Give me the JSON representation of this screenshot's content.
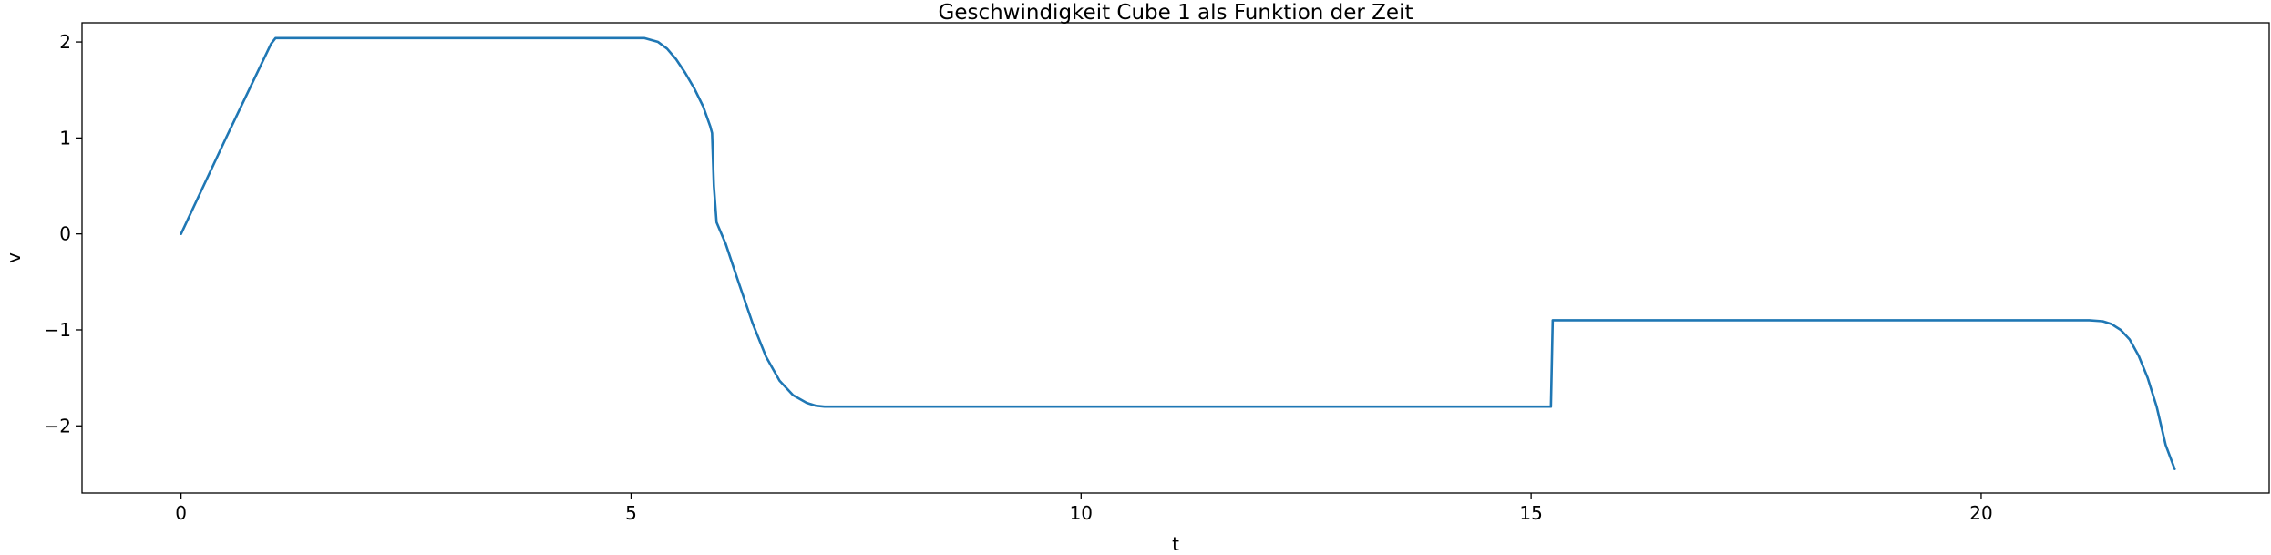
{
  "chart_data": {
    "type": "line",
    "title": "Geschwindigkeit Cube 1 als Funktion der Zeit",
    "xlabel": "t",
    "ylabel": "v",
    "xlim": [
      -1.1,
      23.2
    ],
    "ylim": [
      -2.7,
      2.2
    ],
    "xticks": [
      0,
      5,
      10,
      15,
      20
    ],
    "xtick_labels": [
      "0",
      "5",
      "10",
      "15",
      "20"
    ],
    "yticks": [
      -2,
      -1,
      0,
      1,
      2
    ],
    "ytick_labels": [
      "−2",
      "−1",
      "0",
      "1",
      "2"
    ],
    "grid": false,
    "legend": "none",
    "series": [
      {
        "color": "#1f77b4",
        "x": [
          0,
          0.5,
          1.0,
          1.05,
          2,
          3,
          4,
          5,
          5.15,
          5.3,
          5.4,
          5.5,
          5.6,
          5.7,
          5.8,
          5.88,
          5.9,
          5.92,
          5.95,
          6.05,
          6.2,
          6.35,
          6.5,
          6.65,
          6.8,
          6.95,
          7.05,
          7.15,
          8,
          10,
          12,
          14,
          15.0,
          15.22,
          15.24,
          15.3,
          16,
          18,
          20,
          21.2,
          21.35,
          21.45,
          21.55,
          21.65,
          21.75,
          21.85,
          21.95,
          22.05,
          22.15
        ],
        "y": [
          0,
          1.0,
          1.98,
          2.04,
          2.04,
          2.04,
          2.04,
          2.04,
          2.04,
          2.0,
          1.93,
          1.82,
          1.68,
          1.52,
          1.33,
          1.12,
          1.05,
          0.5,
          0.12,
          -0.1,
          -0.52,
          -0.93,
          -1.28,
          -1.53,
          -1.68,
          -1.76,
          -1.79,
          -1.8,
          -1.8,
          -1.8,
          -1.8,
          -1.8,
          -1.8,
          -1.8,
          -0.9,
          -0.9,
          -0.9,
          -0.9,
          -0.9,
          -0.9,
          -0.91,
          -0.94,
          -1.0,
          -1.1,
          -1.27,
          -1.5,
          -1.8,
          -2.2,
          -2.45
        ]
      }
    ]
  }
}
